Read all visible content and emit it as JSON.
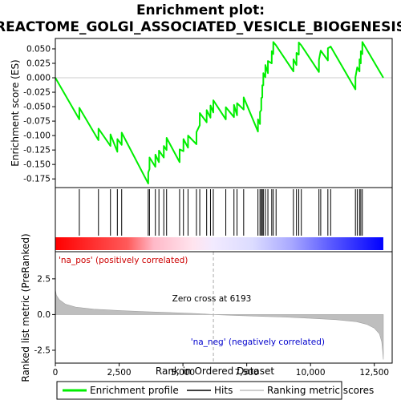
{
  "chart_data": {
    "type": "line",
    "title_line1": "Enrichment plot:",
    "title_line2": "REACTOME_GOLGI_ASSOCIATED_VESICLE_BIOGENESIS",
    "xlabel": "Rank in Ordered Dataset",
    "ylabel_top": "Enrichment score (ES)",
    "ylabel_bottom": "Ranked list metric (PreRanked)",
    "x_ticks": [
      0,
      2500,
      5000,
      7500,
      10000,
      12500
    ],
    "x_tick_labels": [
      "0",
      "2,500",
      "5,000",
      "7,500",
      "10,000",
      "12,500"
    ],
    "xlim": [
      0,
      13200
    ],
    "es_ylim": [
      -0.19,
      0.068
    ],
    "es_ticks": [
      0.05,
      0.025,
      0.0,
      -0.025,
      -0.05,
      -0.075,
      -0.1,
      -0.125,
      -0.15,
      -0.175
    ],
    "es_tick_labels": [
      "0.050",
      "0.025",
      "0.000",
      "-0.025",
      "-0.050",
      "-0.075",
      "-0.100",
      "-0.125",
      "-0.150",
      "-0.175"
    ],
    "metric_ylim": [
      -3.4,
      4.4
    ],
    "metric_ticks": [
      2.5,
      0.0,
      -2.5
    ],
    "metric_tick_labels": [
      "2.5",
      "0.0",
      "-2.5"
    ],
    "total_genes": 12853,
    "zero_cross": 6193,
    "zero_cross_label": "Zero cross at 6193",
    "pos_label": "'na_pos' (positively correlated)",
    "neg_label": "'na_neg' (negatively correlated)",
    "hits": [
      940,
      1690,
      2160,
      2430,
      2600,
      3640,
      3690,
      3920,
      4060,
      4250,
      4360,
      4870,
      5020,
      5200,
      5530,
      5660,
      5930,
      6080,
      6190,
      6680,
      7000,
      7120,
      7380,
      7940,
      8020,
      8070,
      8110,
      8150,
      8230,
      8330,
      8480,
      8540,
      8650,
      9330,
      9450,
      9540,
      9640,
      10330,
      10400,
      10680,
      10790,
      11760,
      11830,
      11920,
      11970,
      12030
    ],
    "es_curve": [
      [
        0,
        0.0
      ],
      [
        940,
        -0.072
      ],
      [
        941,
        -0.052
      ],
      [
        1690,
        -0.108
      ],
      [
        1691,
        -0.088
      ],
      [
        2160,
        -0.118
      ],
      [
        2161,
        -0.098
      ],
      [
        2430,
        -0.128
      ],
      [
        2431,
        -0.106
      ],
      [
        2600,
        -0.116
      ],
      [
        2601,
        -0.095
      ],
      [
        3640,
        -0.183
      ],
      [
        3641,
        -0.164
      ],
      [
        3690,
        -0.158
      ],
      [
        3691,
        -0.138
      ],
      [
        3920,
        -0.154
      ],
      [
        3921,
        -0.133
      ],
      [
        4060,
        -0.146
      ],
      [
        4061,
        -0.126
      ],
      [
        4250,
        -0.138
      ],
      [
        4251,
        -0.118
      ],
      [
        4360,
        -0.125
      ],
      [
        4361,
        -0.104
      ],
      [
        4870,
        -0.146
      ],
      [
        4871,
        -0.124
      ],
      [
        5020,
        -0.127
      ],
      [
        5021,
        -0.106
      ],
      [
        5200,
        -0.121
      ],
      [
        5201,
        -0.1
      ],
      [
        5530,
        -0.115
      ],
      [
        5531,
        -0.094
      ],
      [
        5660,
        -0.082
      ],
      [
        5661,
        -0.061
      ],
      [
        5930,
        -0.077
      ],
      [
        5931,
        -0.056
      ],
      [
        6080,
        -0.069
      ],
      [
        6081,
        -0.048
      ],
      [
        6190,
        -0.06
      ],
      [
        6191,
        -0.039
      ],
      [
        6680,
        -0.072
      ],
      [
        6681,
        -0.051
      ],
      [
        7000,
        -0.068
      ],
      [
        7001,
        -0.047
      ],
      [
        7120,
        -0.065
      ],
      [
        7121,
        -0.044
      ],
      [
        7380,
        -0.055
      ],
      [
        7381,
        -0.034
      ],
      [
        7940,
        -0.093
      ],
      [
        7941,
        -0.072
      ],
      [
        8020,
        -0.08
      ],
      [
        8021,
        -0.059
      ],
      [
        8070,
        -0.056
      ],
      [
        8071,
        -0.035
      ],
      [
        8110,
        -0.034
      ],
      [
        8111,
        -0.013
      ],
      [
        8150,
        -0.013
      ],
      [
        8151,
        0.008
      ],
      [
        8230,
        0.001
      ],
      [
        8231,
        0.022
      ],
      [
        8330,
        0.008
      ],
      [
        8331,
        0.029
      ],
      [
        8480,
        0.025
      ],
      [
        8481,
        0.046
      ],
      [
        8540,
        0.041
      ],
      [
        8541,
        0.062
      ],
      [
        8650,
        0.056
      ],
      [
        9330,
        0.011
      ],
      [
        9331,
        0.032
      ],
      [
        9450,
        0.022
      ],
      [
        9451,
        0.043
      ],
      [
        9540,
        0.04
      ],
      [
        9541,
        0.061
      ],
      [
        9640,
        0.056
      ],
      [
        10330,
        0.01
      ],
      [
        10331,
        0.031
      ],
      [
        10400,
        0.047
      ],
      [
        10680,
        0.03
      ],
      [
        10681,
        0.051
      ],
      [
        10790,
        0.054
      ],
      [
        11760,
        -0.02
      ],
      [
        11761,
        0.001
      ],
      [
        11830,
        0.018
      ],
      [
        11920,
        0.011
      ],
      [
        11921,
        0.032
      ],
      [
        11970,
        0.025
      ],
      [
        11971,
        0.046
      ],
      [
        12030,
        0.041
      ],
      [
        12031,
        0.062
      ],
      [
        12853,
        0.0
      ]
    ],
    "metric_curve": [
      [
        0,
        1.75
      ],
      [
        40,
        1.35
      ],
      [
        150,
        1.05
      ],
      [
        400,
        0.72
      ],
      [
        800,
        0.52
      ],
      [
        1500,
        0.38
      ],
      [
        2500,
        0.28
      ],
      [
        3500,
        0.2
      ],
      [
        4500,
        0.14
      ],
      [
        5500,
        0.07
      ],
      [
        6193,
        0.0
      ],
      [
        7000,
        -0.06
      ],
      [
        8000,
        -0.12
      ],
      [
        9000,
        -0.18
      ],
      [
        10000,
        -0.26
      ],
      [
        11000,
        -0.36
      ],
      [
        11800,
        -0.5
      ],
      [
        12200,
        -0.68
      ],
      [
        12500,
        -0.95
      ],
      [
        12700,
        -1.35
      ],
      [
        12790,
        -1.9
      ],
      [
        12830,
        -2.6
      ],
      [
        12853,
        -3.15
      ]
    ],
    "colors": {
      "es_line": "#00ee00",
      "hit": "#000000",
      "pos": "#ff0000",
      "neg": "#0000ff",
      "metric_fill": "#bebebe",
      "zero_line": "#aaaaaa"
    }
  },
  "legend": {
    "enrichment_profile": "Enrichment profile",
    "hits": "Hits",
    "ranking": "Ranking metric scores"
  }
}
